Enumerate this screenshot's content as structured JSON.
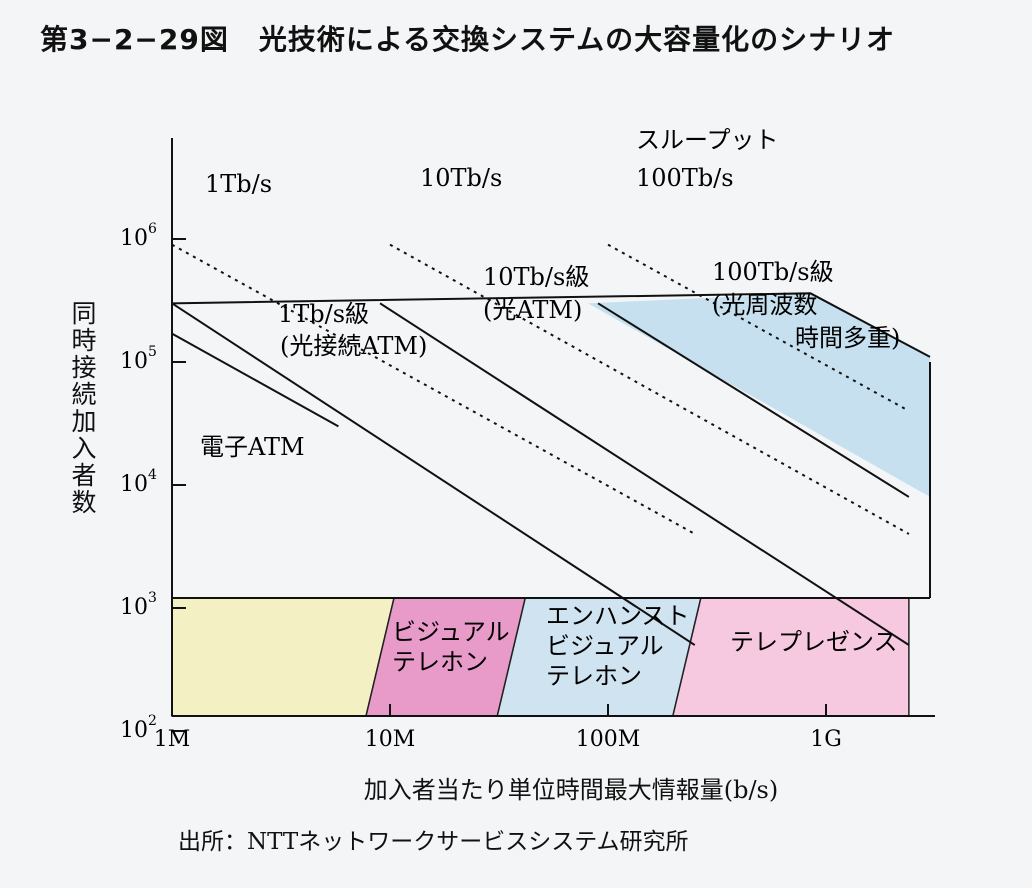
{
  "figure": {
    "number": "第3−2−29図",
    "title": "光技術による交換システムの大容量化のシナリオ",
    "source": "出所：NTTネットワークサービスシステム研究所"
  },
  "chart_data": {
    "type": "line",
    "xscale": "log",
    "yscale": "log",
    "xlabel": "加入者当たり単位時間最大情報量(b/s)",
    "ylabel": "同時接続加入者数",
    "xlim": [
      1000000,
      3000000000
    ],
    "ylim": [
      50,
      1500000
    ],
    "x_ticks": [
      {
        "value": 1000000,
        "label": "1M"
      },
      {
        "value": 10000000,
        "label": "10M"
      },
      {
        "value": 100000000,
        "label": "100M"
      },
      {
        "value": 1000000000,
        "label": "1G"
      }
    ],
    "y_ticks": [
      {
        "value": 100,
        "base": "10",
        "exp": "2"
      },
      {
        "value": 1000,
        "base": "10",
        "exp": "3"
      },
      {
        "value": 10000,
        "base": "10",
        "exp": "4"
      },
      {
        "value": 100000,
        "base": "10",
        "exp": "5"
      },
      {
        "value": 1000000,
        "base": "10",
        "exp": "6"
      }
    ],
    "capacity_lines": [
      {
        "name": "電子ATM",
        "style": "solid",
        "points": [
          [
            1000000,
            170000
          ],
          [
            5800000,
            30000
          ]
        ]
      },
      {
        "name": "1Tb/s級(光接続ATM)",
        "style": "solid",
        "points": [
          [
            1000000,
            300000
          ],
          [
            250000000,
            500
          ]
        ]
      },
      {
        "name": "10Tb/s級(光ATM)",
        "style": "solid",
        "points": [
          [
            9000000,
            300000
          ],
          [
            2400000000,
            500
          ]
        ]
      },
      {
        "name": "100Tb/s級(光周波数時間多重)",
        "style": "solid",
        "points": [
          [
            90000000,
            300000
          ],
          [
            2400000000,
            8000
          ]
        ]
      }
    ],
    "throughput_lines": [
      {
        "name": "1Tb/s",
        "style": "dotted",
        "points": [
          [
            1000000,
            900000
          ],
          [
            250000000,
            4000
          ]
        ]
      },
      {
        "name": "10Tb/s",
        "style": "dotted",
        "points": [
          [
            10000000,
            900000
          ],
          [
            2400000000,
            4000
          ]
        ]
      },
      {
        "name": "100Tb/s",
        "style": "dotted",
        "points": [
          [
            100000000,
            900000
          ],
          [
            2400000000,
            40000
          ]
        ]
      }
    ],
    "throughput_header": "スループット",
    "services": [
      {
        "name": "",
        "color": "#f3f0c4",
        "range": [
          1000000,
          9000000
        ]
      },
      {
        "name": "ビジュアルテレホン",
        "lines": [
          "ビジュアル",
          "テレホン"
        ],
        "color": "#e89ac9",
        "range": [
          9000000,
          36000000
        ]
      },
      {
        "name": "エンハンストビジュアルテレホン",
        "lines": [
          "エンハンスト",
          "ビジュアル",
          "テレホン"
        ],
        "color": "#cfe3f0",
        "range": [
          36000000,
          230000000
        ]
      },
      {
        "name": "テレプレゼンス",
        "lines": [
          "テレプレゼンス"
        ],
        "color": "#f6c9e0",
        "range": [
          230000000,
          2400000000
        ]
      }
    ],
    "shaded_region": {
      "name": "100Tb/s級",
      "color": "#c6e0f0"
    },
    "annotations": {
      "denshi": "電子ATM",
      "tb1_a": "1Tb/s級",
      "tb1_b": "(光接続ATM)",
      "tb10_a": "10Tb/s級",
      "tb10_b": "(光ATM)",
      "tb100_a": "100Tb/s級",
      "tb100_b": "(光周波数",
      "tb100_c": "時間多重)",
      "thr_1": "1Tb/s",
      "thr_10": "10Tb/s",
      "thr_100": "100Tb/s"
    }
  }
}
